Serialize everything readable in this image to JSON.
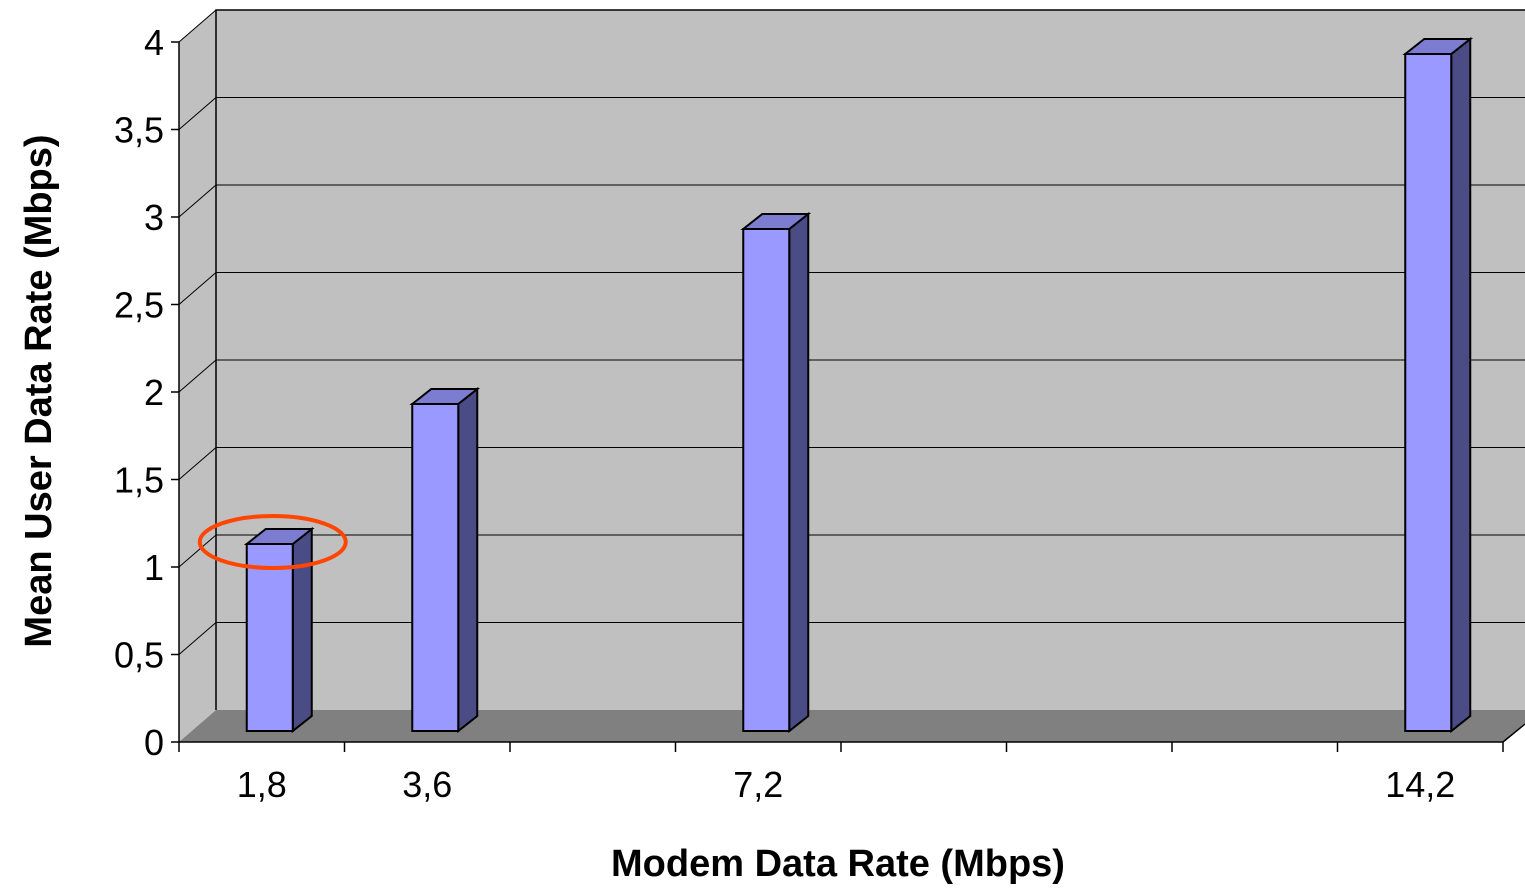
{
  "chart_data": {
    "type": "bar",
    "xlabel": "Modem Data Rate (Mbps)",
    "ylabel": "Mean User Data Rate (Mbps)",
    "categories": [
      "1,8",
      "3,6",
      "",
      "7,2",
      "",
      "",
      "",
      "14,2"
    ],
    "values": [
      1.2,
      2.0,
      null,
      3.0,
      null,
      null,
      null,
      4.0
    ],
    "ylim": [
      0,
      4
    ],
    "yticks": [
      {
        "value": 0,
        "label": "0"
      },
      {
        "value": 0.5,
        "label": "0,5"
      },
      {
        "value": 1,
        "label": "1"
      },
      {
        "value": 1.5,
        "label": "1,5"
      },
      {
        "value": 2,
        "label": "2"
      },
      {
        "value": 2.5,
        "label": "2,5"
      },
      {
        "value": 3,
        "label": "3"
      },
      {
        "value": 3.5,
        "label": "3,5"
      },
      {
        "value": 4,
        "label": "4"
      }
    ],
    "grid": true,
    "three_d": true,
    "highlight": {
      "category": "1,8",
      "shape": "ellipse",
      "color": "#FF4500"
    },
    "colors": {
      "wall": "#C0C0C0",
      "floor": "#808080",
      "bar_front": "#9999FF",
      "bar_side": "#4B4B85",
      "bar_top": "#7C7CD0",
      "outline": "#000000"
    }
  }
}
